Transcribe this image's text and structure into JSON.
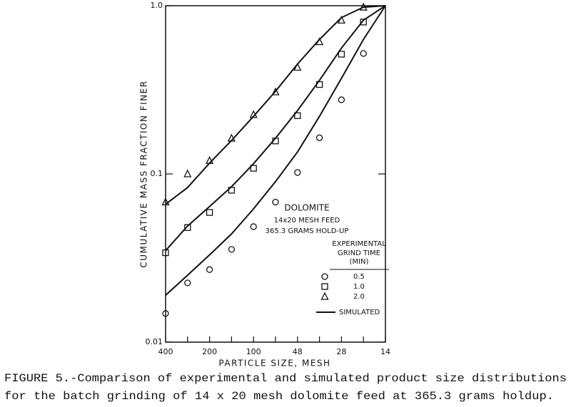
{
  "chart_data": {
    "type": "scatter",
    "x_label": "PARTICLE SIZE, MESH",
    "y_label": "CUMULATIVE MASS FRACTION FINER",
    "categories": [
      "400",
      null,
      "200",
      null,
      "100",
      null,
      "48",
      null,
      "28",
      null,
      "14"
    ],
    "y_scale": "log",
    "ylim": [
      0.01,
      1.0
    ],
    "yticks": [
      {
        "value": 1.0,
        "label": "1.0"
      },
      0.1,
      0.01
    ],
    "color": "#111111",
    "series": [
      {
        "name": "0.5",
        "marker": "circle",
        "values": [
          0.0148,
          0.0225,
          0.027,
          0.0356,
          0.0486,
          0.068,
          0.102,
          0.164,
          0.276,
          0.52,
          null
        ]
      },
      {
        "name": "1.0",
        "marker": "square",
        "values": [
          0.034,
          0.048,
          0.059,
          0.08,
          0.108,
          0.157,
          0.222,
          0.34,
          0.515,
          0.8,
          null
        ]
      },
      {
        "name": "2.0",
        "marker": "triangle",
        "values": [
          0.068,
          0.1,
          0.12,
          0.163,
          0.225,
          0.307,
          0.43,
          0.61,
          0.82,
          0.98,
          null
        ]
      }
    ],
    "simulated": {
      "name": "SIMULATED",
      "series": [
        {
          "values": [
            0.019,
            0.025,
            0.033,
            0.044,
            0.062,
            0.09,
            0.135,
            0.22,
            0.37,
            0.63,
            1.0
          ]
        },
        {
          "values": [
            0.035,
            0.049,
            0.064,
            0.084,
            0.115,
            0.163,
            0.238,
            0.36,
            0.56,
            0.82,
            1.0
          ]
        },
        {
          "values": [
            0.066,
            0.083,
            0.116,
            0.158,
            0.22,
            0.31,
            0.45,
            0.63,
            0.85,
            0.98,
            1.0
          ]
        }
      ]
    },
    "annotations": [
      "DOLOMITE",
      "14x20 MESH FEED",
      "365.3 GRAMS HOLD-UP"
    ],
    "legend_title": [
      "EXPERIMENTAL",
      "GRIND TIME",
      "(MIN)"
    ]
  },
  "caption": [
    "FIGURE 5.-Comparison of experimental and simulated product size distributions",
    "for the batch grinding of 14 x 20 mesh dolomite feed at 365.3 grams holdup."
  ]
}
